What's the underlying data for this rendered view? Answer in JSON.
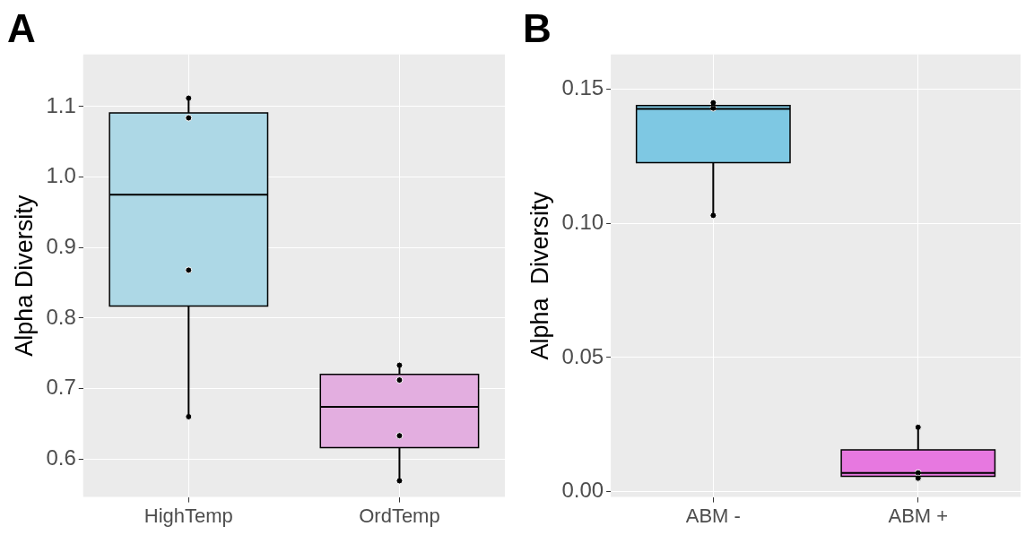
{
  "chart_data": [
    {
      "type": "box",
      "title": "A",
      "ylabel": "Alpha Diversity",
      "categories": [
        "HighTemp",
        "OrdTemp"
      ],
      "ylim": [
        0.546,
        1.174
      ],
      "yticks": [
        0.6,
        0.7,
        0.8,
        0.9,
        {
          "value": 1,
          "label": "1.0"
        },
        1.1
      ],
      "grid": true,
      "series": [
        {
          "colors": [
            "#add8e6",
            "#e3aee0"
          ],
          "boxes": [
            {
              "low": 0.66,
              "q1": 0.817,
              "median": 0.975,
              "q3": 1.091,
              "high": 1.112
            },
            {
              "low": 0.57,
              "q1": 0.616,
              "median": 0.674,
              "q3": 0.72,
              "high": 0.733
            }
          ]
        },
        {
          "type": "scatter",
          "x": [
            "HighTemp",
            "HighTemp",
            "HighTemp",
            "HighTemp",
            "OrdTemp",
            "OrdTemp",
            "OrdTemp",
            "OrdTemp"
          ],
          "values": [
            1.112,
            1.084,
            0.868,
            0.66,
            0.733,
            0.712,
            0.633,
            0.569
          ],
          "color": "#000000",
          "marker": "circle"
        }
      ]
    },
    {
      "type": "box",
      "title": "B",
      "ylabel": "Alpha  Diversity",
      "categories": [
        "ABM -",
        "ABM +"
      ],
      "ylim": [
        -0.002,
        0.163
      ],
      "yticks": [
        {
          "value": 0,
          "label": "0.00"
        },
        {
          "value": 0.05,
          "label": "0.05"
        },
        {
          "value": 0.1,
          "label": "0.10"
        },
        0.15
      ],
      "grid": true,
      "series": [
        {
          "colors": [
            "#7ec8e3",
            "#e778e0"
          ],
          "boxes": [
            {
              "low": 0.103,
              "q1": 0.1227,
              "median": 0.1427,
              "q3": 0.144,
              "high": 0.145
            },
            {
              "low": 0.005,
              "q1": 0.0057,
              "median": 0.007,
              "q3": 0.0156,
              "high": 0.024
            }
          ]
        },
        {
          "type": "scatter",
          "x": [
            "ABM -",
            "ABM -",
            "ABM -",
            "ABM +",
            "ABM +",
            "ABM +"
          ],
          "values": [
            0.143,
            0.145,
            0.103,
            0.024,
            0.007,
            0.005
          ],
          "color": "#000000",
          "marker": "circle"
        }
      ]
    }
  ]
}
